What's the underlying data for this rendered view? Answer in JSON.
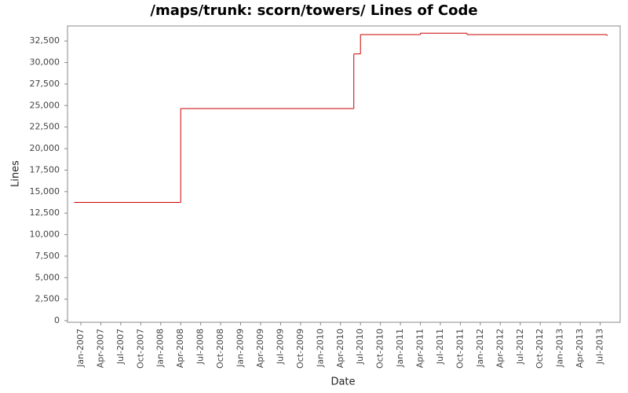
{
  "chart_data": {
    "type": "step",
    "title": "/maps/trunk: scorn/towers/ Lines of Code",
    "x_label": "Date",
    "y_label": "Lines",
    "x": [
      "2006-12",
      "2008-04",
      "2010-06",
      "2010-07",
      "2011-04",
      "2011-11",
      "2013-08"
    ],
    "series": [
      {
        "name": "Lines",
        "color": "#cc0000",
        "values": [
          13750,
          24650,
          31000,
          33250,
          33400,
          33250,
          33150
        ]
      }
    ],
    "xlim": [
      "2006-11",
      "2013-10"
    ],
    "xticks": [
      {
        "value": "2007-01",
        "label": "Jan-2007"
      },
      {
        "value": "2007-04",
        "label": "Apr-2007"
      },
      {
        "value": "2007-07",
        "label": "Jul-2007"
      },
      {
        "value": "2007-10",
        "label": "Oct-2007"
      },
      {
        "value": "2008-01",
        "label": "Jan-2008"
      },
      {
        "value": "2008-04",
        "label": "Apr-2008"
      },
      {
        "value": "2008-07",
        "label": "Jul-2008"
      },
      {
        "value": "2008-10",
        "label": "Oct-2008"
      },
      {
        "value": "2009-01",
        "label": "Jan-2009"
      },
      {
        "value": "2009-04",
        "label": "Apr-2009"
      },
      {
        "value": "2009-07",
        "label": "Jul-2009"
      },
      {
        "value": "2009-10",
        "label": "Oct-2009"
      },
      {
        "value": "2010-01",
        "label": "Jan-2010"
      },
      {
        "value": "2010-04",
        "label": "Apr-2010"
      },
      {
        "value": "2010-07",
        "label": "Jul-2010"
      },
      {
        "value": "2010-10",
        "label": "Oct-2010"
      },
      {
        "value": "2011-01",
        "label": "Jan-2011"
      },
      {
        "value": "2011-04",
        "label": "Apr-2011"
      },
      {
        "value": "2011-07",
        "label": "Jul-2011"
      },
      {
        "value": "2011-10",
        "label": "Oct-2011"
      },
      {
        "value": "2012-01",
        "label": "Jan-2012"
      },
      {
        "value": "2012-04",
        "label": "Apr-2012"
      },
      {
        "value": "2012-07",
        "label": "Jul-2012"
      },
      {
        "value": "2012-10",
        "label": "Oct-2012"
      },
      {
        "value": "2013-01",
        "label": "Jan-2013"
      },
      {
        "value": "2013-04",
        "label": "Apr-2013"
      },
      {
        "value": "2013-07",
        "label": "Jul-2013"
      }
    ],
    "ylim": [
      0,
      34250
    ],
    "yticks": [
      0,
      {
        "value": 2500,
        "label": "2,500"
      },
      {
        "value": 5000,
        "label": "5,000"
      },
      {
        "value": 7500,
        "label": "7,500"
      },
      {
        "value": 10000,
        "label": "10,000"
      },
      {
        "value": 12500,
        "label": "12,500"
      },
      {
        "value": 15000,
        "label": "15,000"
      },
      {
        "value": 17500,
        "label": "17,500"
      },
      {
        "value": 20000,
        "label": "20,000"
      },
      {
        "value": 22500,
        "label": "22,500"
      },
      {
        "value": 25000,
        "label": "25,000"
      },
      {
        "value": 27500,
        "label": "27,500"
      },
      {
        "value": 30000,
        "label": "30,000"
      },
      {
        "value": 32500,
        "label": "32,500"
      }
    ],
    "grid": false
  }
}
